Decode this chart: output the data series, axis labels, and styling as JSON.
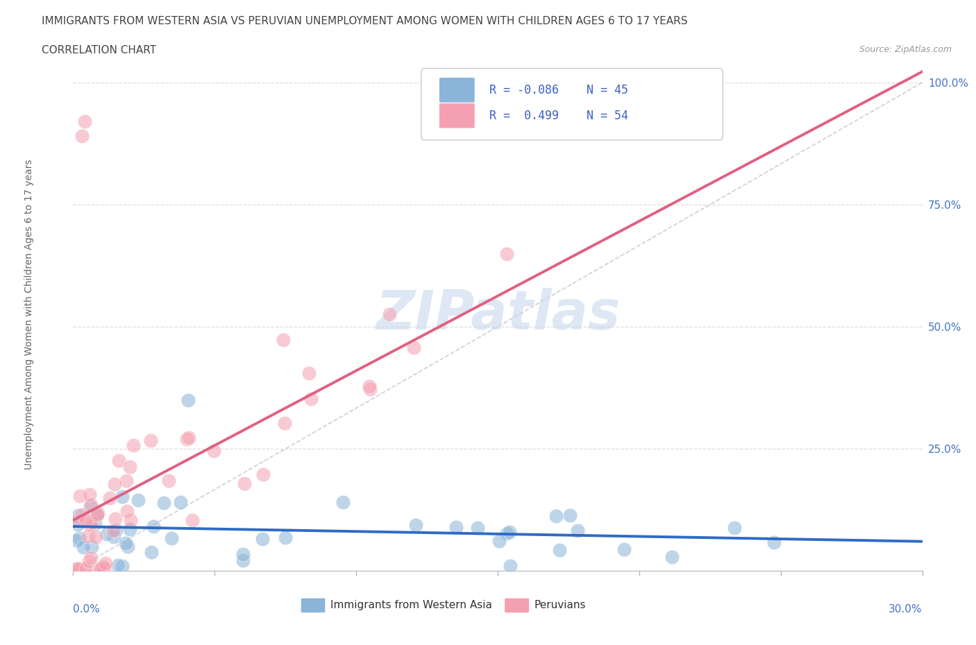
{
  "title": "IMMIGRANTS FROM WESTERN ASIA VS PERUVIAN UNEMPLOYMENT AMONG WOMEN WITH CHILDREN AGES 6 TO 17 YEARS",
  "subtitle": "CORRELATION CHART",
  "source": "Source: ZipAtlas.com",
  "ylabel": "Unemployment Among Women with Children Ages 6 to 17 years",
  "legend_label1": "Immigrants from Western Asia",
  "legend_label2": "Peruvians",
  "color_blue": "#8AB4D8",
  "color_pink": "#F4A0B0",
  "color_blue_line": "#2E6BC4",
  "color_pink_line": "#E06080",
  "color_ref_line": "#BBBBBB",
  "watermark": "ZIPatlas",
  "watermark_color": "#C8D8EE",
  "legend_R1": "R = -0.086",
  "legend_N1": "N = 45",
  "legend_R2": "R =  0.499",
  "legend_N2": "N = 54",
  "xmin": 0.0,
  "xmax": 0.3,
  "ymin": 0.0,
  "ymax": 1.05,
  "yticks": [
    0.25,
    0.5,
    0.75,
    1.0
  ],
  "ytick_labels": [
    "25.0%",
    "50.0%",
    "75.0%",
    "100.0%"
  ],
  "title_fontsize": 11,
  "subtitle_fontsize": 11,
  "source_fontsize": 9,
  "axis_label_fontsize": 10,
  "tick_fontsize": 11,
  "legend_fontsize": 12
}
